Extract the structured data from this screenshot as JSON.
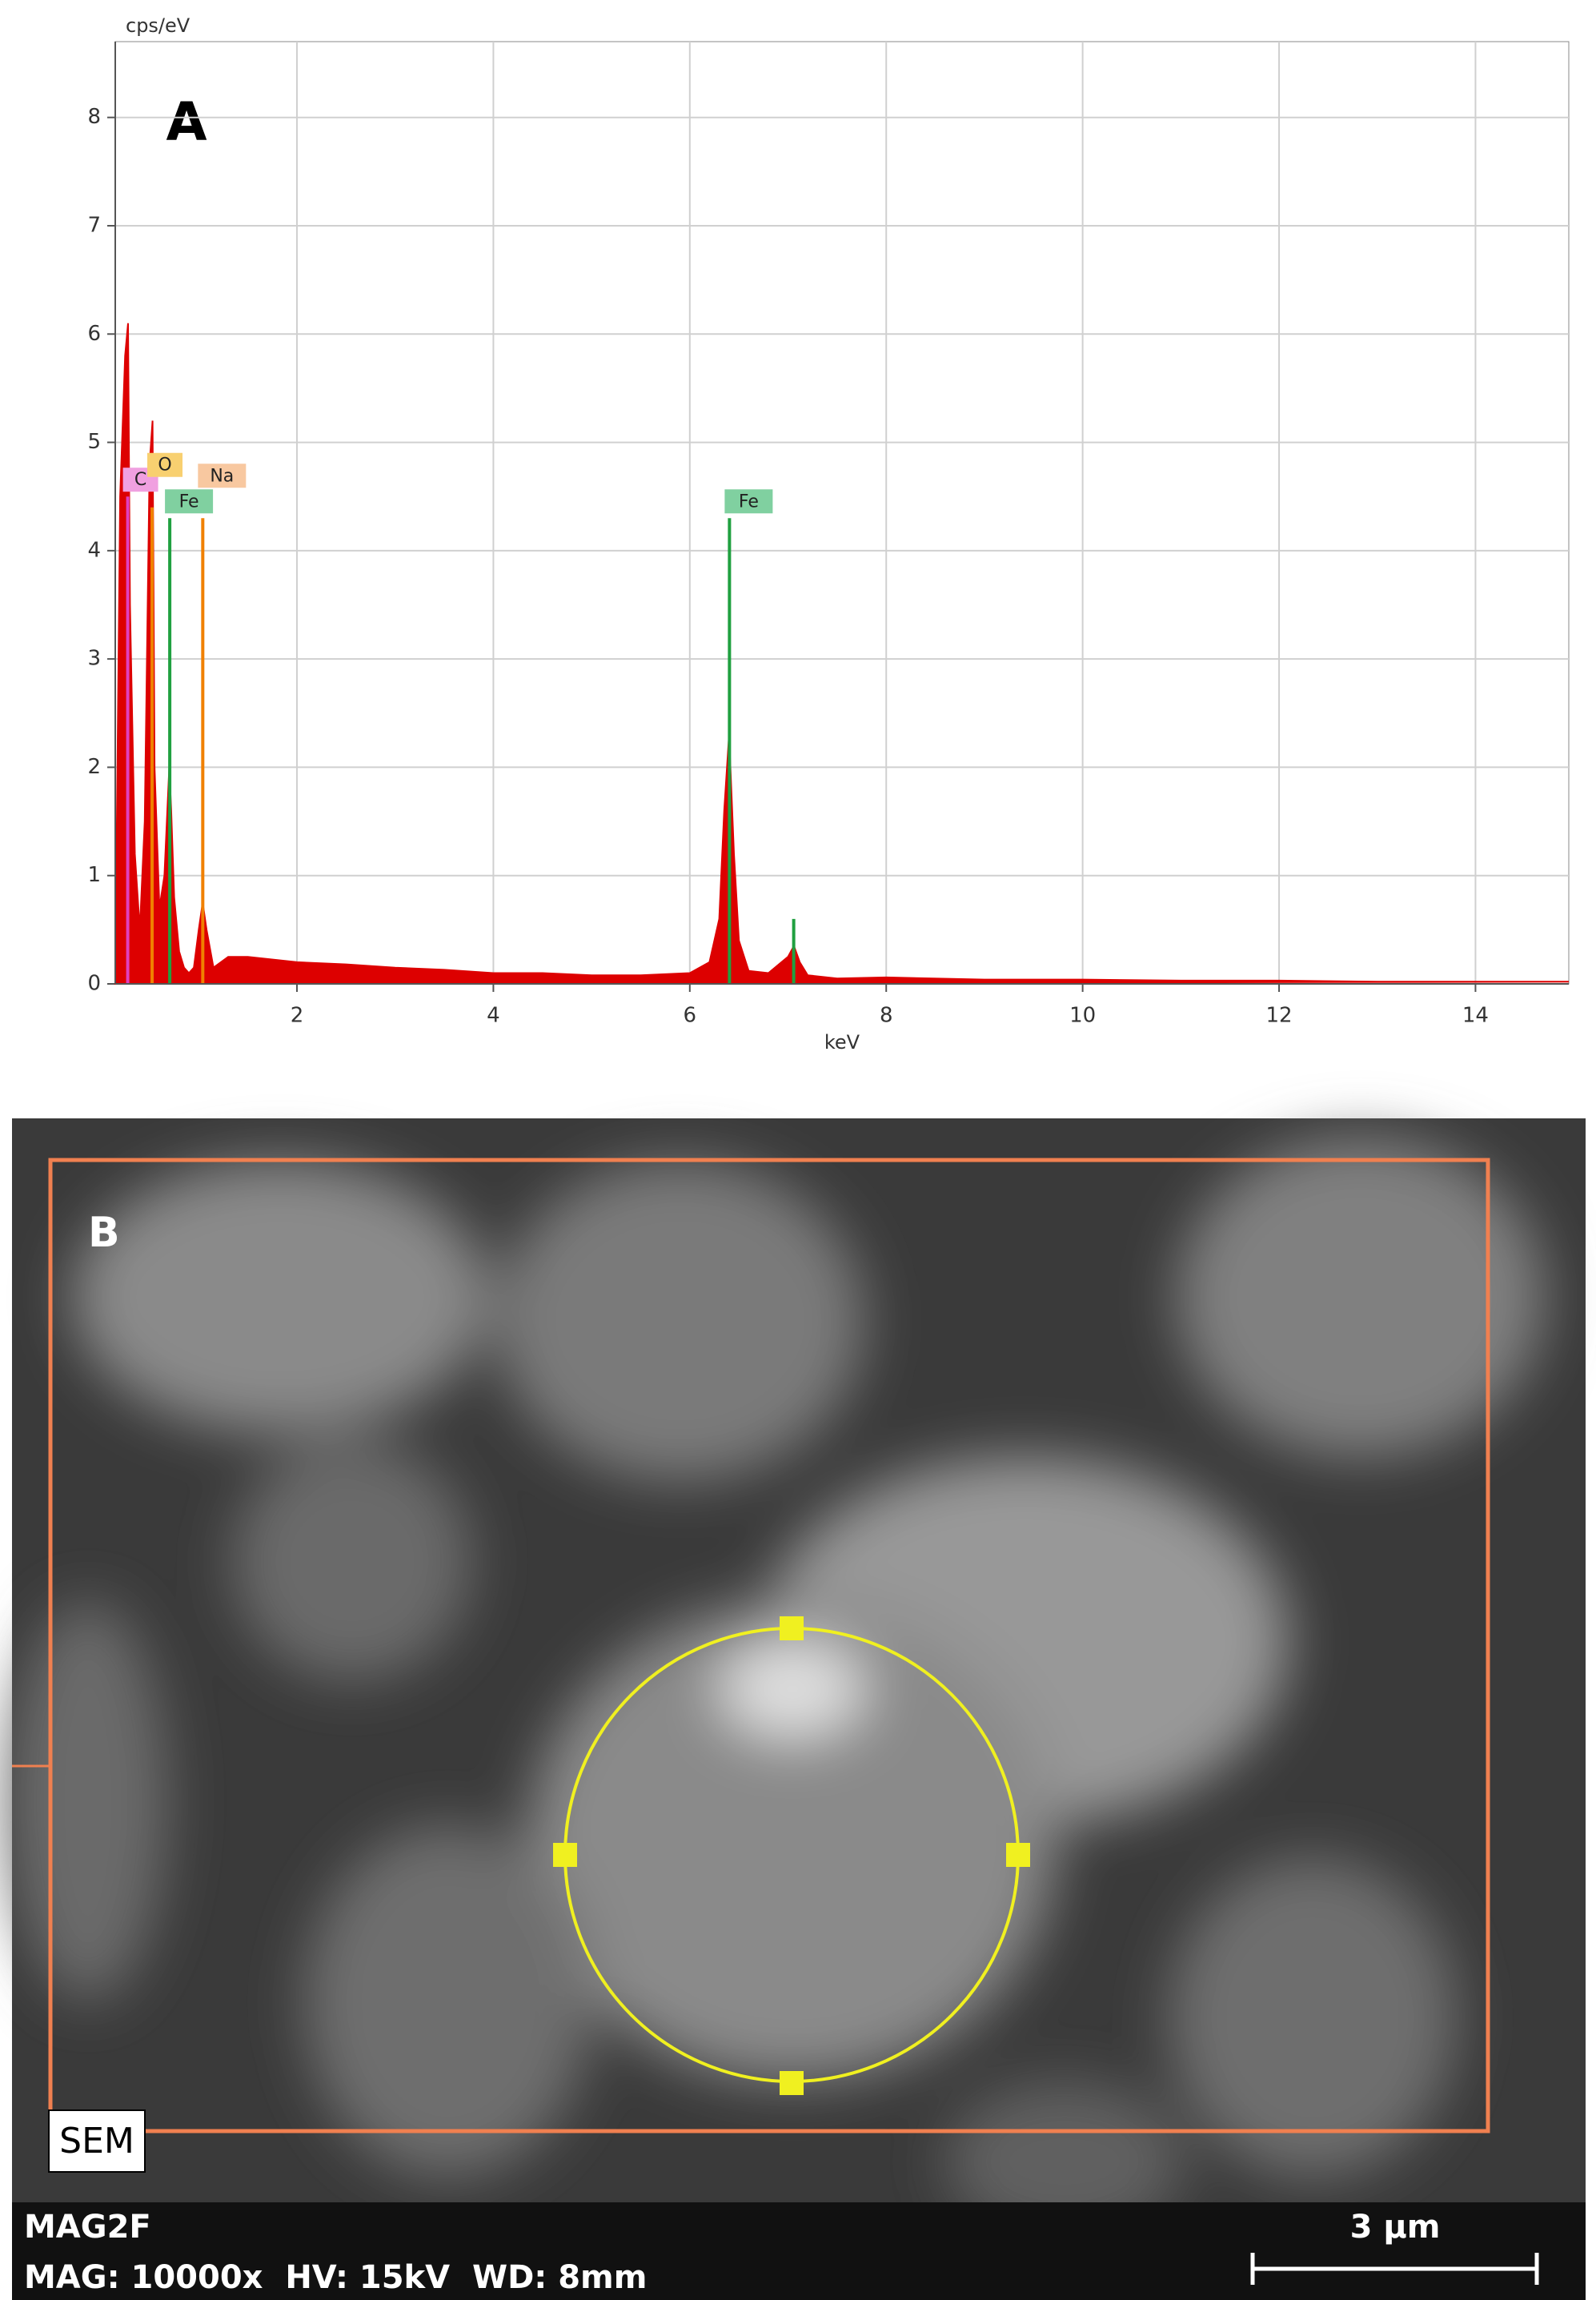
{
  "chart_data": {
    "type": "area",
    "panel_label": "A",
    "y_label": "cps/eV",
    "x_label": "keV",
    "xlim": [
      0.15,
      14.95
    ],
    "ylim": [
      0,
      8.7
    ],
    "xticks": [
      2,
      4,
      6,
      8,
      10,
      12,
      14
    ],
    "yticks": [
      0,
      1,
      2,
      3,
      4,
      5,
      6,
      7,
      8
    ],
    "grid": true,
    "series": [
      {
        "color": "#dd0000",
        "x": [
          0.15,
          0.2,
          0.25,
          0.28,
          0.3,
          0.35,
          0.4,
          0.45,
          0.5,
          0.53,
          0.55,
          0.6,
          0.65,
          0.7,
          0.72,
          0.75,
          0.8,
          0.85,
          0.9,
          0.95,
          1.0,
          1.04,
          1.08,
          1.15,
          1.3,
          1.5,
          2,
          2.5,
          3,
          3.5,
          4,
          4.5,
          5,
          5.5,
          6,
          6.2,
          6.3,
          6.35,
          6.4,
          6.45,
          6.5,
          6.6,
          6.8,
          7.0,
          7.06,
          7.12,
          7.2,
          7.5,
          8,
          9,
          10,
          11,
          12,
          13,
          14,
          14.95
        ],
        "values": [
          0,
          4.5,
          5.8,
          6.1,
          3.5,
          1.2,
          0.5,
          1.5,
          4.8,
          5.2,
          2.0,
          0.7,
          1.0,
          2.0,
          1.6,
          0.8,
          0.3,
          0.15,
          0.1,
          0.15,
          0.5,
          0.75,
          0.5,
          0.15,
          0.25,
          0.25,
          0.2,
          0.18,
          0.15,
          0.13,
          0.1,
          0.1,
          0.08,
          0.08,
          0.1,
          0.2,
          0.6,
          1.6,
          2.3,
          1.2,
          0.4,
          0.12,
          0.1,
          0.25,
          0.35,
          0.2,
          0.08,
          0.05,
          0.06,
          0.04,
          0.04,
          0.03,
          0.03,
          0.02,
          0.02,
          0.02
        ]
      }
    ],
    "element_lines": [
      {
        "label": "C",
        "x": 0.277,
        "height": 4.5,
        "color": "#e040c0",
        "label_color": "#f0a0e0"
      },
      {
        "label": "O",
        "x": 0.525,
        "height": 4.4,
        "color": "#f08000",
        "label_color": "#f8d070"
      },
      {
        "label": "Fe",
        "x": 0.705,
        "height": 4.3,
        "color": "#20a040",
        "label_color": "#80d0a0"
      },
      {
        "label": "Na",
        "x": 1.041,
        "height": 4.3,
        "color": "#f08000",
        "label_color": "#f8c8a0"
      },
      {
        "label": "Fe",
        "x": 6.404,
        "height": 4.3,
        "color": "#20a040",
        "label_color": "#80d0a0"
      },
      {
        "label": null,
        "x": 7.058,
        "height": 0.6,
        "color": "#20a040",
        "label_color": "#80d0a0"
      }
    ]
  },
  "sem_image": {
    "panel_label": "B",
    "detector": "SEM",
    "title": "MAG2F",
    "settings": "MAG: 10000x  HV: 15kV  WD: 8mm",
    "scale_bar": "3 µm"
  }
}
